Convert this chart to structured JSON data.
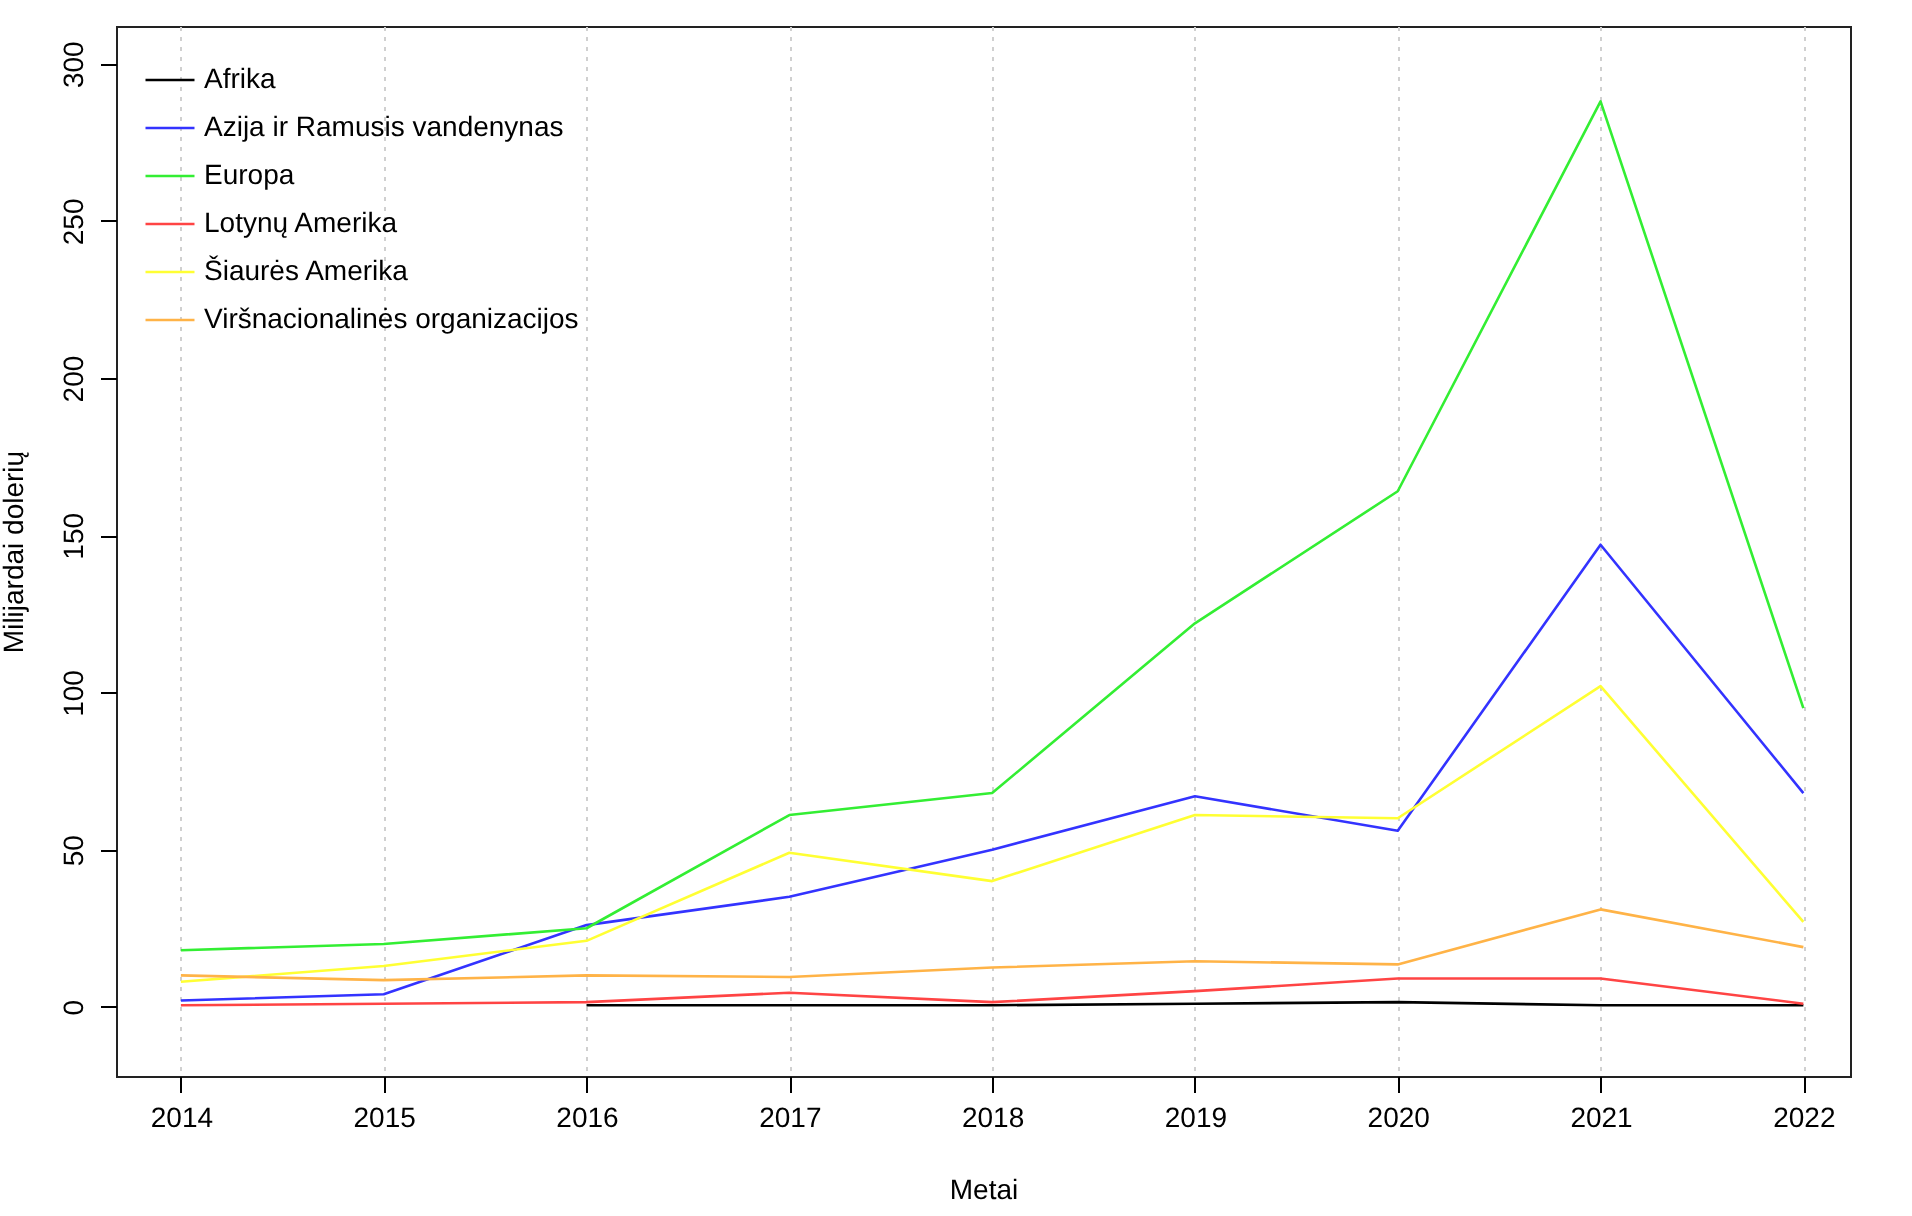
{
  "chart_data": {
    "type": "line",
    "xlabel": "Metai",
    "ylabel": "Milijardai dolerių",
    "x": [
      2014,
      2015,
      2016,
      2017,
      2018,
      2019,
      2020,
      2021,
      2022
    ],
    "series": [
      {
        "name": "Afrika",
        "color": "#000000",
        "values": [
          null,
          null,
          0.5,
          0.5,
          0.5,
          1,
          1.5,
          0.5,
          0.5
        ]
      },
      {
        "name": "Azija ir Ramusis vandenynas",
        "color": "#3333ff",
        "values": [
          2,
          4,
          26,
          35,
          50,
          67,
          56,
          147,
          68
        ]
      },
      {
        "name": "Europa",
        "color": "#33ee33",
        "values": [
          18,
          20,
          25,
          61,
          68,
          122,
          164,
          288,
          95
        ]
      },
      {
        "name": "Lotynų Amerika",
        "color": "#ff4444",
        "values": [
          0.5,
          1,
          1.5,
          4.5,
          1.5,
          5,
          9,
          9,
          1
        ]
      },
      {
        "name": "Šiaurės Amerika",
        "color": "#ffff33",
        "values": [
          8,
          13,
          21,
          49,
          40,
          61,
          60,
          102,
          27
        ]
      },
      {
        "name": "Viršnacionalinės organizacijos",
        "color": "#ffb347",
        "values": [
          10,
          8.5,
          10,
          9.5,
          12.5,
          14.5,
          13.5,
          31,
          19
        ]
      }
    ],
    "xlim": [
      2013.68,
      2022.23
    ],
    "xticks": [
      2014,
      2015,
      2016,
      2017,
      2018,
      2019,
      2020,
      2021,
      2022
    ],
    "ylim": [
      -22,
      312
    ],
    "yticks": [
      0,
      50,
      100,
      150,
      200,
      250,
      300
    ],
    "grid": "x",
    "legend": "top left"
  }
}
